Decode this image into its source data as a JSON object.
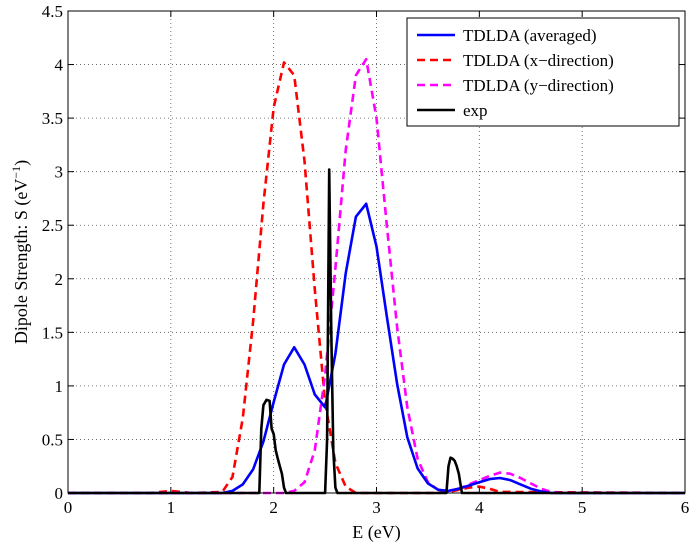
{
  "chart_data": {
    "type": "line",
    "title": "",
    "xlabel": "E (eV)",
    "ylabel_main": "Dipole Strength: S (eV",
    "ylabel_sup": "−1",
    "ylabel_close": ")",
    "xlim": [
      0,
      6
    ],
    "ylim": [
      0,
      4.5
    ],
    "xticks": [
      0,
      1,
      2,
      3,
      4,
      5,
      6
    ],
    "xtick_labels": [
      "0",
      "1",
      "2",
      "3",
      "4",
      "5",
      "6"
    ],
    "yticks": [
      0,
      0.5,
      1,
      1.5,
      2,
      2.5,
      3,
      3.5,
      4,
      4.5
    ],
    "ytick_labels": [
      "0",
      "0.5",
      "1",
      "1.5",
      "2",
      "2.5",
      "3",
      "3.5",
      "4",
      "4.5"
    ],
    "grid": true,
    "legend_position": "top-right",
    "series": [
      {
        "name": "TDLDA (averaged)",
        "color": "#0000ff",
        "dash": "solid",
        "x": [
          0,
          1.5,
          1.6,
          1.7,
          1.8,
          1.9,
          2.0,
          2.1,
          2.2,
          2.3,
          2.4,
          2.5,
          2.6,
          2.7,
          2.8,
          2.9,
          3.0,
          3.1,
          3.2,
          3.3,
          3.4,
          3.5,
          3.6,
          3.7,
          3.8,
          3.9,
          4.0,
          4.1,
          4.2,
          4.3,
          4.4,
          4.5,
          4.6,
          4.7,
          6.0
        ],
        "y": [
          0,
          0,
          0.02,
          0.08,
          0.22,
          0.48,
          0.85,
          1.2,
          1.36,
          1.2,
          0.92,
          0.8,
          1.3,
          2.05,
          2.58,
          2.7,
          2.3,
          1.65,
          1.02,
          0.52,
          0.23,
          0.09,
          0.03,
          0.02,
          0.04,
          0.07,
          0.1,
          0.13,
          0.14,
          0.12,
          0.08,
          0.04,
          0.015,
          0,
          0
        ]
      },
      {
        "name": "TDLDA (x−direction)",
        "color": "#ff0000",
        "dash": "dashed",
        "x": [
          0,
          0.8,
          0.9,
          1.0,
          1.1,
          1.2,
          1.5,
          1.6,
          1.7,
          1.8,
          1.9,
          2.0,
          2.1,
          2.2,
          2.3,
          2.4,
          2.5,
          2.6,
          2.7,
          2.8,
          3.6,
          3.7,
          3.8,
          3.9,
          4.0,
          4.1,
          4.2,
          6.0
        ],
        "y": [
          0,
          0,
          0.01,
          0.02,
          0.01,
          0,
          0.01,
          0.15,
          0.7,
          1.6,
          2.7,
          3.6,
          4.02,
          3.9,
          3.1,
          1.9,
          0.85,
          0.28,
          0.06,
          0,
          0,
          0.01,
          0.03,
          0.05,
          0.06,
          0.04,
          0.01,
          0
        ]
      },
      {
        "name": "TDLDA (y−direction)",
        "color": "#ff00ff",
        "dash": "dashed",
        "x": [
          0,
          2.1,
          2.2,
          2.3,
          2.4,
          2.5,
          2.6,
          2.7,
          2.8,
          2.9,
          3.0,
          3.1,
          3.2,
          3.3,
          3.4,
          3.5,
          3.6,
          3.7,
          3.8,
          3.9,
          4.0,
          4.1,
          4.2,
          4.3,
          4.4,
          4.5,
          4.6,
          4.7,
          4.8,
          6.0
        ],
        "y": [
          0,
          0,
          0.02,
          0.1,
          0.4,
          1.1,
          2.1,
          3.2,
          3.9,
          4.05,
          3.5,
          2.5,
          1.55,
          0.8,
          0.32,
          0.1,
          0.03,
          0.02,
          0.04,
          0.08,
          0.12,
          0.16,
          0.19,
          0.18,
          0.14,
          0.09,
          0.04,
          0.01,
          0,
          0
        ]
      },
      {
        "name": "exp",
        "color": "#000000",
        "dash": "solid",
        "x": [
          0,
          1.86,
          1.88,
          1.9,
          1.93,
          1.96,
          1.98,
          2.0,
          2.02,
          2.04,
          2.06,
          2.08,
          2.1,
          2.12,
          2.5,
          2.52,
          2.54,
          2.56,
          2.58,
          2.6,
          2.62,
          3.68,
          3.7,
          3.72,
          3.74,
          3.76,
          3.78,
          3.8,
          3.83,
          6.0
        ],
        "y": [
          0,
          0,
          0.6,
          0.82,
          0.87,
          0.86,
          0.6,
          0.55,
          0.4,
          0.32,
          0.25,
          0.18,
          0.05,
          0,
          0,
          0.5,
          3.02,
          1.5,
          0.4,
          0.05,
          0,
          0,
          0.25,
          0.33,
          0.32,
          0.3,
          0.25,
          0.18,
          0,
          0
        ]
      }
    ]
  }
}
